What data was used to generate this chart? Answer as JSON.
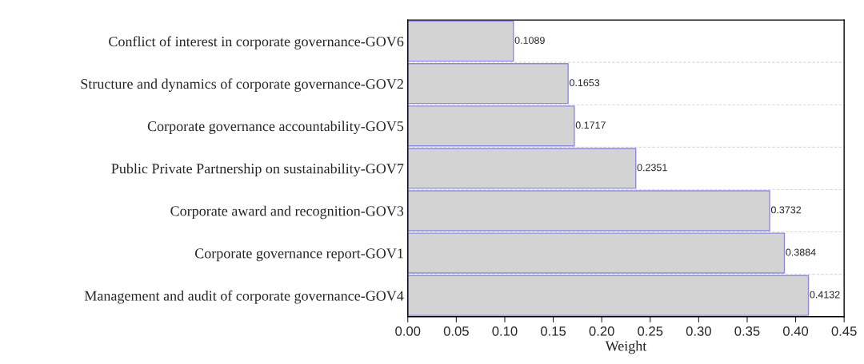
{
  "chart_data": {
    "type": "bar",
    "orientation": "horizontal",
    "xlabel": "Weight",
    "categories": [
      "Conflict of interest in corporate governance-GOV6",
      "Structure and dynamics of corporate governance-GOV2",
      "Corporate governance accountability-GOV5",
      "Public Private Partnership on sustainability-GOV7",
      "Corporate award and recognition-GOV3",
      "Corporate governance report-GOV1",
      "Management and audit of corporate governance-GOV4"
    ],
    "values": [
      0.1089,
      0.1653,
      0.1717,
      0.2351,
      0.3732,
      0.3884,
      0.4132
    ],
    "color": "#d3d3d3",
    "xlim": [
      0,
      0.45
    ],
    "xticks": [
      {
        "value": 0,
        "label": "0.00"
      },
      {
        "value": 0.05,
        "label": "0.05"
      },
      {
        "value": 0.1,
        "label": "0.10"
      },
      {
        "value": 0.15,
        "label": "0.15"
      },
      {
        "value": 0.2,
        "label": "0.20"
      },
      {
        "value": 0.25,
        "label": "0.25"
      },
      {
        "value": 0.3,
        "label": "0.30"
      },
      {
        "value": 0.35,
        "label": "0.35"
      },
      {
        "value": 0.4,
        "label": "0.40"
      },
      {
        "value": 0.45,
        "label": "0.45"
      }
    ],
    "data_labels": true,
    "grid": "y",
    "legend": false
  }
}
